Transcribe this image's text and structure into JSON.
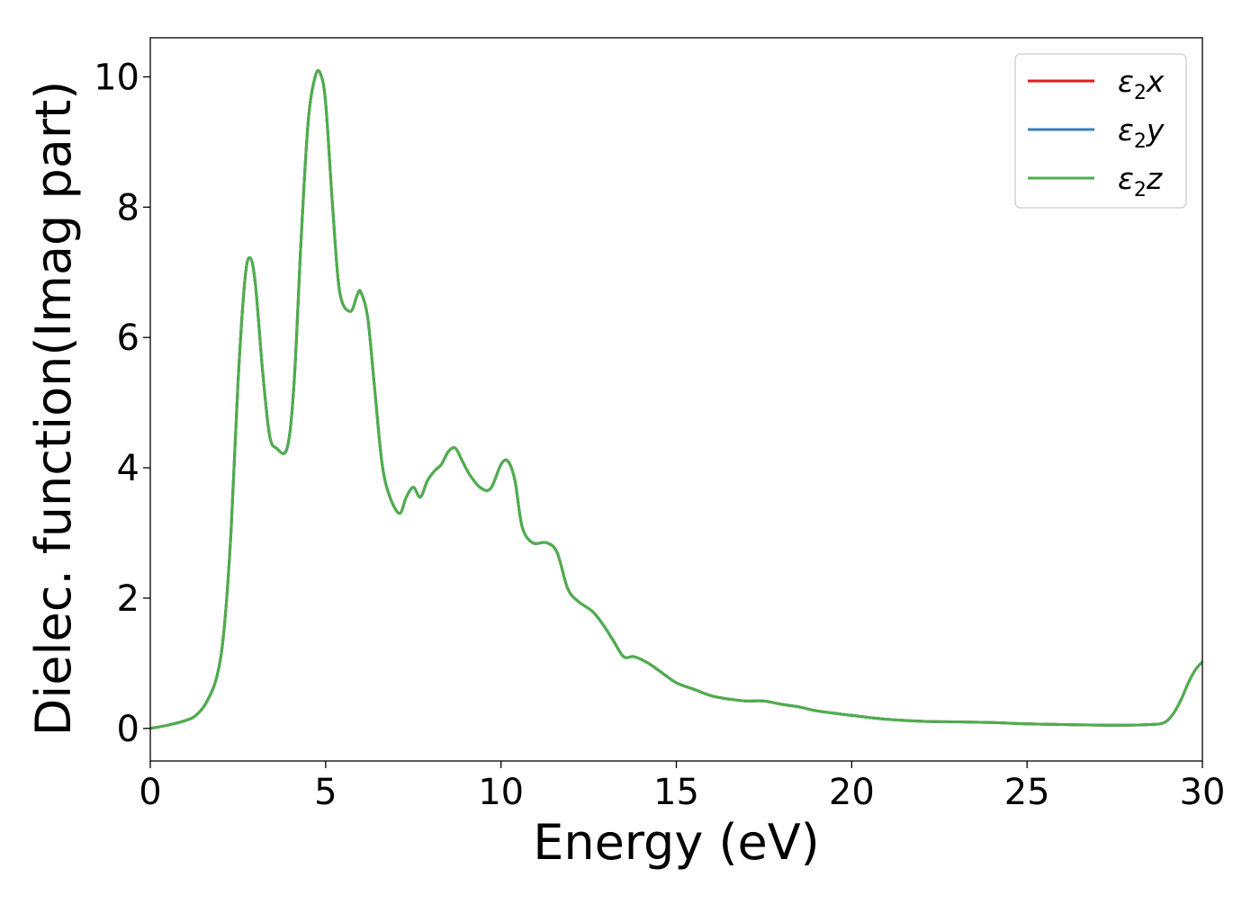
{
  "chart_data": {
    "type": "line",
    "title": "",
    "xlabel": "Energy (eV)",
    "ylabel": "Dielec. function(Imag part)",
    "xlim": [
      0,
      30
    ],
    "ylim": [
      -0.5,
      10.6
    ],
    "xticks": [
      0,
      5,
      10,
      15,
      20,
      25,
      30
    ],
    "yticks": [
      0,
      2,
      4,
      6,
      8,
      10
    ],
    "xtick_labels": [
      "0",
      "5",
      "10",
      "15",
      "20",
      "25",
      "30"
    ],
    "ytick_labels": [
      "0",
      "2",
      "4",
      "6",
      "8",
      "10"
    ],
    "grid": false,
    "legend_position": "top-right",
    "x": [
      0,
      0.5,
      1.0,
      1.3,
      1.6,
      1.9,
      2.1,
      2.3,
      2.5,
      2.7,
      2.85,
      3.0,
      3.2,
      3.4,
      3.6,
      3.9,
      4.1,
      4.3,
      4.5,
      4.7,
      4.85,
      5.0,
      5.2,
      5.4,
      5.7,
      5.9,
      6.0,
      6.2,
      6.4,
      6.6,
      6.8,
      7.1,
      7.3,
      7.5,
      7.7,
      7.9,
      8.1,
      8.3,
      8.5,
      8.7,
      8.9,
      9.1,
      9.4,
      9.7,
      10.0,
      10.2,
      10.4,
      10.6,
      10.9,
      11.3,
      11.6,
      11.9,
      12.2,
      12.6,
      12.9,
      13.2,
      13.5,
      13.8,
      14.2,
      14.6,
      15.0,
      15.5,
      16.0,
      16.5,
      17.0,
      17.5,
      18.0,
      18.5,
      19.0,
      20.0,
      21.0,
      22.0,
      23.0,
      24.0,
      25.0,
      26.0,
      27.0,
      28.0,
      28.5,
      28.8,
      29.0,
      29.2,
      29.4,
      29.6,
      29.8,
      30.0
    ],
    "series": [
      {
        "name": "ε₂x",
        "color": "#e41a1c",
        "y": [
          0,
          0.05,
          0.12,
          0.2,
          0.4,
          0.8,
          1.5,
          3.0,
          5.3,
          6.9,
          7.22,
          6.8,
          5.5,
          4.5,
          4.3,
          4.3,
          5.3,
          7.5,
          9.3,
          10.0,
          10.05,
          9.6,
          8.0,
          6.7,
          6.4,
          6.65,
          6.7,
          6.3,
          5.2,
          4.1,
          3.6,
          3.3,
          3.55,
          3.7,
          3.55,
          3.8,
          3.95,
          4.05,
          4.25,
          4.3,
          4.1,
          3.9,
          3.7,
          3.68,
          4.05,
          4.1,
          3.8,
          3.1,
          2.85,
          2.85,
          2.7,
          2.15,
          1.95,
          1.8,
          1.6,
          1.35,
          1.1,
          1.1,
          1.0,
          0.85,
          0.7,
          0.6,
          0.5,
          0.45,
          0.42,
          0.42,
          0.37,
          0.33,
          0.27,
          0.2,
          0.14,
          0.11,
          0.1,
          0.09,
          0.07,
          0.06,
          0.05,
          0.05,
          0.06,
          0.07,
          0.12,
          0.25,
          0.45,
          0.7,
          0.9,
          1.02
        ]
      },
      {
        "name": "ε₂y",
        "color": "#377eb8",
        "y": [
          0,
          0.05,
          0.12,
          0.2,
          0.4,
          0.8,
          1.5,
          3.0,
          5.3,
          6.9,
          7.22,
          6.8,
          5.5,
          4.5,
          4.3,
          4.3,
          5.3,
          7.5,
          9.3,
          10.0,
          10.05,
          9.6,
          8.0,
          6.7,
          6.4,
          6.65,
          6.7,
          6.3,
          5.2,
          4.1,
          3.6,
          3.3,
          3.55,
          3.7,
          3.55,
          3.8,
          3.95,
          4.05,
          4.25,
          4.3,
          4.1,
          3.9,
          3.7,
          3.68,
          4.05,
          4.1,
          3.8,
          3.1,
          2.85,
          2.85,
          2.7,
          2.15,
          1.95,
          1.8,
          1.6,
          1.35,
          1.1,
          1.1,
          1.0,
          0.85,
          0.7,
          0.6,
          0.5,
          0.45,
          0.42,
          0.42,
          0.37,
          0.33,
          0.27,
          0.2,
          0.14,
          0.11,
          0.1,
          0.09,
          0.07,
          0.06,
          0.05,
          0.05,
          0.06,
          0.07,
          0.12,
          0.25,
          0.45,
          0.7,
          0.9,
          1.02
        ]
      },
      {
        "name": "ε₂z",
        "color": "#4daf4a",
        "y": [
          0,
          0.05,
          0.12,
          0.2,
          0.4,
          0.8,
          1.5,
          3.0,
          5.3,
          6.9,
          7.22,
          6.8,
          5.5,
          4.5,
          4.3,
          4.3,
          5.3,
          7.5,
          9.3,
          10.0,
          10.05,
          9.6,
          8.0,
          6.7,
          6.4,
          6.65,
          6.7,
          6.3,
          5.2,
          4.1,
          3.6,
          3.3,
          3.55,
          3.7,
          3.55,
          3.8,
          3.95,
          4.05,
          4.25,
          4.3,
          4.1,
          3.9,
          3.7,
          3.68,
          4.05,
          4.1,
          3.8,
          3.1,
          2.85,
          2.85,
          2.7,
          2.15,
          1.95,
          1.8,
          1.6,
          1.35,
          1.1,
          1.1,
          1.0,
          0.85,
          0.7,
          0.6,
          0.5,
          0.45,
          0.42,
          0.42,
          0.37,
          0.33,
          0.27,
          0.2,
          0.14,
          0.11,
          0.1,
          0.09,
          0.07,
          0.06,
          0.05,
          0.05,
          0.06,
          0.07,
          0.12,
          0.25,
          0.45,
          0.7,
          0.9,
          1.02
        ]
      }
    ],
    "legend": [
      {
        "symbol": "ε",
        "subscript": "2",
        "axis": "x",
        "color": "#e41a1c"
      },
      {
        "symbol": "ε",
        "subscript": "2",
        "axis": "y",
        "color": "#377eb8"
      },
      {
        "symbol": "ε",
        "subscript": "2",
        "axis": "z",
        "color": "#4daf4a"
      }
    ]
  }
}
